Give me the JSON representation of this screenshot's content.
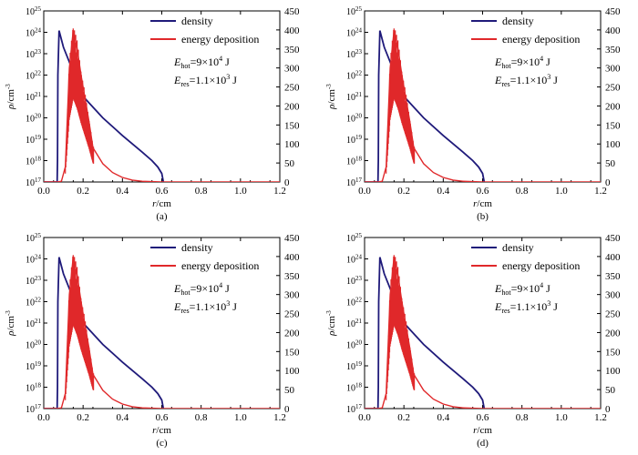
{
  "colors": {
    "density": "#1f1a7a",
    "energy": "#e0282a",
    "axis": "#000000"
  },
  "panels": [
    {
      "label": "(a)",
      "annotation": {
        "ehot_value": "=9×10",
        "ehot_exp": "4",
        "ehot_unit": " J",
        "eres_value": "=1.1×10",
        "eres_exp": "3",
        "eres_unit": " J"
      }
    },
    {
      "label": "(b)",
      "annotation": {
        "ehot_value": "=9×10",
        "ehot_exp": "4",
        "ehot_unit": " J",
        "eres_value": "=1.1×10",
        "eres_exp": "3",
        "eres_unit": " J"
      }
    },
    {
      "label": "(c)",
      "annotation": {
        "ehot_value": "=9×10",
        "ehot_exp": "4",
        "ehot_unit": " J",
        "eres_value": "=1.1×10",
        "eres_exp": "3",
        "eres_unit": " J"
      }
    },
    {
      "label": "(d)",
      "annotation": {
        "ehot_value": "=9×10",
        "ehot_exp": "4",
        "ehot_unit": " J",
        "eres_value": "=1.1×10",
        "eres_exp": "3",
        "eres_unit": " J"
      }
    }
  ],
  "chart_data": [
    {
      "type": "line",
      "panel": "(a)",
      "xlabel": {
        "var": "r",
        "unit": "/cm"
      },
      "ylabel_left": {
        "var": "ρ",
        "unit": "/cm",
        "exp": "-3"
      },
      "xlim": [
        0,
        1.2
      ],
      "xticks": [
        "0.0",
        "0.2",
        "0.4",
        "0.6",
        "0.8",
        "1.0",
        "1.2"
      ],
      "ylim_left_log10": [
        17,
        25
      ],
      "yticks_left": [
        {
          "base": "10",
          "exp": "17"
        },
        {
          "base": "10",
          "exp": "18"
        },
        {
          "base": "10",
          "exp": "19"
        },
        {
          "base": "10",
          "exp": "20"
        },
        {
          "base": "10",
          "exp": "21"
        },
        {
          "base": "10",
          "exp": "22"
        },
        {
          "base": "10",
          "exp": "23"
        },
        {
          "base": "10",
          "exp": "24"
        },
        {
          "base": "10",
          "exp": "25"
        }
      ],
      "ylim_right": [
        0,
        450
      ],
      "yticks_right": [
        "0",
        "50",
        "100",
        "150",
        "200",
        "250",
        "300",
        "350",
        "400",
        "450"
      ],
      "legend": [
        "density",
        "energy deposition"
      ],
      "series": [
        {
          "name": "density",
          "axis": "left",
          "scale": "log",
          "x": [
            0.0,
            0.068,
            0.07,
            0.072,
            0.078,
            0.1,
            0.2,
            0.3,
            0.4,
            0.5,
            0.55,
            0.58,
            0.6,
            0.61,
            0.62,
            1.2
          ],
          "y": [
            1e+17,
            1e+17,
            1e+18,
            1e+22,
            1.2e+24,
            2e+23,
            1e+21,
            1e+20,
            1.5e+19,
            2.5e+18,
            1e+18,
            5e+17,
            2.5e+17,
            8e+16,
            6e+16,
            6e+16
          ]
        },
        {
          "name": "energy deposition",
          "axis": "right",
          "x": [
            0.0,
            0.07,
            0.09,
            0.11,
            0.13,
            0.15,
            0.17,
            0.19,
            0.21,
            0.23,
            0.25,
            0.3,
            0.35,
            0.4,
            0.45,
            0.5,
            0.55,
            0.6,
            1.2
          ],
          "y": [
            0,
            0,
            2,
            40,
            300,
            400,
            350,
            280,
            220,
            160,
            90,
            48,
            25,
            12,
            5,
            2,
            1,
            0,
            0
          ]
        }
      ]
    },
    {
      "type": "line",
      "panel": "(b)",
      "xlabel": {
        "var": "r",
        "unit": "/cm"
      },
      "ylabel_left": {
        "var": "ρ",
        "unit": "/cm",
        "exp": "-3"
      },
      "xlim": [
        0,
        1.2
      ],
      "xticks": [
        "0.0",
        "0.2",
        "0.4",
        "0.6",
        "0.8",
        "1.0",
        "1.2"
      ],
      "ylim_left_log10": [
        17,
        25
      ],
      "yticks_left": [
        {
          "base": "10",
          "exp": "17"
        },
        {
          "base": "10",
          "exp": "18"
        },
        {
          "base": "10",
          "exp": "19"
        },
        {
          "base": "10",
          "exp": "20"
        },
        {
          "base": "10",
          "exp": "21"
        },
        {
          "base": "10",
          "exp": "22"
        },
        {
          "base": "10",
          "exp": "23"
        },
        {
          "base": "10",
          "exp": "24"
        },
        {
          "base": "10",
          "exp": "25"
        }
      ],
      "ylim_right": [
        0,
        450
      ],
      "yticks_right": [
        "0",
        "50",
        "100",
        "150",
        "200",
        "250",
        "300",
        "350",
        "400",
        "450"
      ],
      "legend": [
        "density",
        "energy deposition"
      ],
      "series": [
        {
          "name": "density",
          "axis": "left",
          "scale": "log",
          "x": [
            0.0,
            0.068,
            0.07,
            0.072,
            0.078,
            0.1,
            0.2,
            0.3,
            0.4,
            0.5,
            0.55,
            0.58,
            0.6,
            0.61,
            0.62,
            1.2
          ],
          "y": [
            1e+17,
            1e+17,
            1e+18,
            1e+22,
            1.2e+24,
            2e+23,
            1e+21,
            1e+20,
            1.5e+19,
            2.5e+18,
            1e+18,
            5e+17,
            2.5e+17,
            8e+16,
            6e+16,
            6e+16
          ]
        },
        {
          "name": "energy deposition",
          "axis": "right",
          "x": [
            0.0,
            0.07,
            0.09,
            0.11,
            0.13,
            0.15,
            0.17,
            0.19,
            0.21,
            0.23,
            0.25,
            0.3,
            0.35,
            0.4,
            0.45,
            0.5,
            0.55,
            0.6,
            1.2
          ],
          "y": [
            0,
            0,
            2,
            40,
            300,
            400,
            350,
            280,
            220,
            160,
            90,
            48,
            25,
            12,
            5,
            2,
            1,
            0,
            0
          ]
        }
      ]
    },
    {
      "type": "line",
      "panel": "(c)",
      "xlabel": {
        "var": "r",
        "unit": "/cm"
      },
      "ylabel_left": {
        "var": "ρ",
        "unit": "/cm",
        "exp": "-3"
      },
      "xlim": [
        0,
        1.2
      ],
      "xticks": [
        "0.0",
        "0.2",
        "0.4",
        "0.6",
        "0.8",
        "1.0",
        "1.2"
      ],
      "ylim_left_log10": [
        17,
        25
      ],
      "yticks_left": [
        {
          "base": "10",
          "exp": "17"
        },
        {
          "base": "10",
          "exp": "18"
        },
        {
          "base": "10",
          "exp": "19"
        },
        {
          "base": "10",
          "exp": "20"
        },
        {
          "base": "10",
          "exp": "21"
        },
        {
          "base": "10",
          "exp": "22"
        },
        {
          "base": "10",
          "exp": "23"
        },
        {
          "base": "10",
          "exp": "24"
        },
        {
          "base": "10",
          "exp": "25"
        }
      ],
      "ylim_right": [
        0,
        450
      ],
      "yticks_right": [
        "0",
        "50",
        "100",
        "150",
        "200",
        "250",
        "300",
        "350",
        "400",
        "450"
      ],
      "legend": [
        "density",
        "energy deposition"
      ],
      "series": [
        {
          "name": "density",
          "axis": "left",
          "scale": "log",
          "x": [
            0.0,
            0.068,
            0.07,
            0.072,
            0.078,
            0.1,
            0.2,
            0.3,
            0.4,
            0.5,
            0.55,
            0.58,
            0.6,
            0.61,
            0.62,
            1.2
          ],
          "y": [
            1e+17,
            1e+17,
            1e+18,
            1e+22,
            1.2e+24,
            2e+23,
            1e+21,
            1e+20,
            1.5e+19,
            2.5e+18,
            1e+18,
            5e+17,
            2.5e+17,
            8e+16,
            6e+16,
            6e+16
          ]
        },
        {
          "name": "energy deposition",
          "axis": "right",
          "x": [
            0.0,
            0.07,
            0.09,
            0.11,
            0.13,
            0.15,
            0.17,
            0.19,
            0.21,
            0.23,
            0.25,
            0.3,
            0.35,
            0.4,
            0.45,
            0.5,
            0.55,
            0.6,
            1.2
          ],
          "y": [
            0,
            0,
            2,
            40,
            300,
            400,
            350,
            280,
            220,
            160,
            90,
            48,
            25,
            12,
            5,
            2,
            1,
            0,
            0
          ]
        }
      ]
    },
    {
      "type": "line",
      "panel": "(d)",
      "xlabel": {
        "var": "r",
        "unit": "/cm"
      },
      "ylabel_left": {
        "var": "ρ",
        "unit": "/cm",
        "exp": "-3"
      },
      "xlim": [
        0,
        1.2
      ],
      "xticks": [
        "0.0",
        "0.2",
        "0.4",
        "0.6",
        "0.8",
        "1.0",
        "1.2"
      ],
      "ylim_left_log10": [
        17,
        25
      ],
      "yticks_left": [
        {
          "base": "10",
          "exp": "17"
        },
        {
          "base": "10",
          "exp": "18"
        },
        {
          "base": "10",
          "exp": "19"
        },
        {
          "base": "10",
          "exp": "20"
        },
        {
          "base": "10",
          "exp": "21"
        },
        {
          "base": "10",
          "exp": "22"
        },
        {
          "base": "10",
          "exp": "23"
        },
        {
          "base": "10",
          "exp": "24"
        },
        {
          "base": "10",
          "exp": "25"
        }
      ],
      "ylim_right": [
        0,
        450
      ],
      "yticks_right": [
        "0",
        "50",
        "100",
        "150",
        "200",
        "250",
        "300",
        "350",
        "400",
        "450"
      ],
      "legend": [
        "density",
        "energy deposition"
      ],
      "series": [
        {
          "name": "density",
          "axis": "left",
          "scale": "log",
          "x": [
            0.0,
            0.068,
            0.07,
            0.072,
            0.078,
            0.1,
            0.2,
            0.3,
            0.4,
            0.5,
            0.55,
            0.58,
            0.6,
            0.61,
            0.62,
            1.2
          ],
          "y": [
            1e+17,
            1e+17,
            1e+18,
            1e+22,
            1.2e+24,
            2e+23,
            1e+21,
            1e+20,
            1.5e+19,
            2.5e+18,
            1e+18,
            5e+17,
            2.5e+17,
            8e+16,
            6e+16,
            6e+16
          ]
        },
        {
          "name": "energy deposition",
          "axis": "right",
          "x": [
            0.0,
            0.07,
            0.09,
            0.11,
            0.13,
            0.15,
            0.17,
            0.19,
            0.21,
            0.23,
            0.25,
            0.3,
            0.35,
            0.4,
            0.45,
            0.5,
            0.55,
            0.6,
            1.2
          ],
          "y": [
            0,
            0,
            2,
            40,
            300,
            400,
            350,
            280,
            220,
            160,
            90,
            48,
            25,
            12,
            5,
            2,
            1,
            0,
            0
          ]
        }
      ]
    }
  ]
}
